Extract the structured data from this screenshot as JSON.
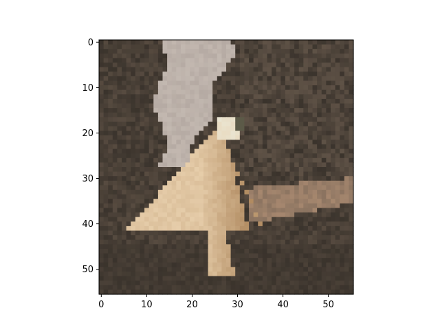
{
  "chart_data": {
    "type": "heatmap",
    "title": "",
    "xlabel": "",
    "ylabel": "",
    "image_size": [
      56,
      56
    ],
    "xlim": [
      -0.5,
      55.5
    ],
    "ylim": [
      55.5,
      -0.5
    ],
    "x_ticks": [
      0,
      10,
      20,
      30,
      40,
      50
    ],
    "y_ticks": [
      0,
      10,
      20,
      30,
      40,
      50
    ],
    "x_tick_labels": [
      "0",
      "10",
      "20",
      "30",
      "40",
      "50"
    ],
    "y_tick_labels": [
      "0",
      "10",
      "20",
      "30",
      "40",
      "50"
    ],
    "grid": false,
    "legend": "none",
    "palette": {
      "sky": "#b5aaa3",
      "dark_foliage": "#3a332c",
      "mid_foliage": "#574b40",
      "branch": "#8a7360",
      "bird_light": "#e6cdaa",
      "bird_shadow": "#b08a60",
      "bird_head": "#eae5d2",
      "beak": "#5c5a48"
    }
  }
}
